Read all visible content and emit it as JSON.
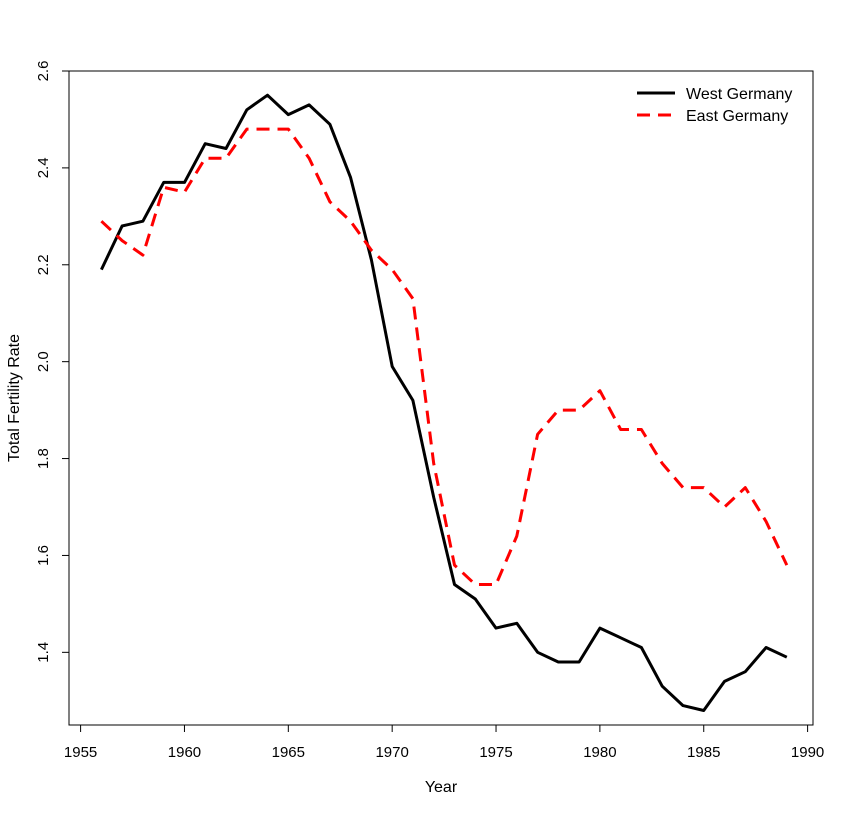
{
  "chart_data": {
    "type": "line",
    "xlabel": "Year",
    "ylabel": "Total Fertility Rate",
    "xlim": [
      1955,
      1990
    ],
    "ylim": [
      1.25,
      2.6
    ],
    "xticks": [
      1955,
      1960,
      1965,
      1970,
      1975,
      1980,
      1985,
      1990
    ],
    "yticks": [
      1.4,
      1.6,
      1.8,
      2.0,
      2.2,
      2.4,
      2.6
    ],
    "ytick_labels": [
      "1.4",
      "1.6",
      "1.8",
      "2.0",
      "2.2",
      "2.4",
      "2.6"
    ],
    "legend_position": "top-right",
    "x": [
      1956,
      1957,
      1958,
      1959,
      1960,
      1961,
      1962,
      1963,
      1964,
      1965,
      1966,
      1967,
      1968,
      1969,
      1970,
      1971,
      1972,
      1973,
      1974,
      1975,
      1976,
      1977,
      1978,
      1979,
      1980,
      1981,
      1982,
      1983,
      1984,
      1985,
      1986,
      1987,
      1988,
      1989
    ],
    "series": [
      {
        "name": "West Germany",
        "color": "#000000",
        "style": "solid",
        "values": [
          2.19,
          2.28,
          2.29,
          2.37,
          2.37,
          2.45,
          2.44,
          2.52,
          2.55,
          2.51,
          2.53,
          2.49,
          2.38,
          2.21,
          1.99,
          1.92,
          1.72,
          1.54,
          1.51,
          1.45,
          1.46,
          1.4,
          1.38,
          1.38,
          1.45,
          1.43,
          1.41,
          1.33,
          1.29,
          1.28,
          1.34,
          1.36,
          1.41,
          1.39
        ]
      },
      {
        "name": "East Germany",
        "color": "#ff0000",
        "style": "dashed",
        "values": [
          2.29,
          2.25,
          2.22,
          2.36,
          2.35,
          2.42,
          2.42,
          2.48,
          2.48,
          2.48,
          2.42,
          2.33,
          2.29,
          2.23,
          2.19,
          2.13,
          1.79,
          1.58,
          1.54,
          1.54,
          1.64,
          1.85,
          1.9,
          1.9,
          1.94,
          1.86,
          1.86,
          1.79,
          1.74,
          1.74,
          1.7,
          1.74,
          1.67,
          1.58
        ]
      }
    ]
  }
}
